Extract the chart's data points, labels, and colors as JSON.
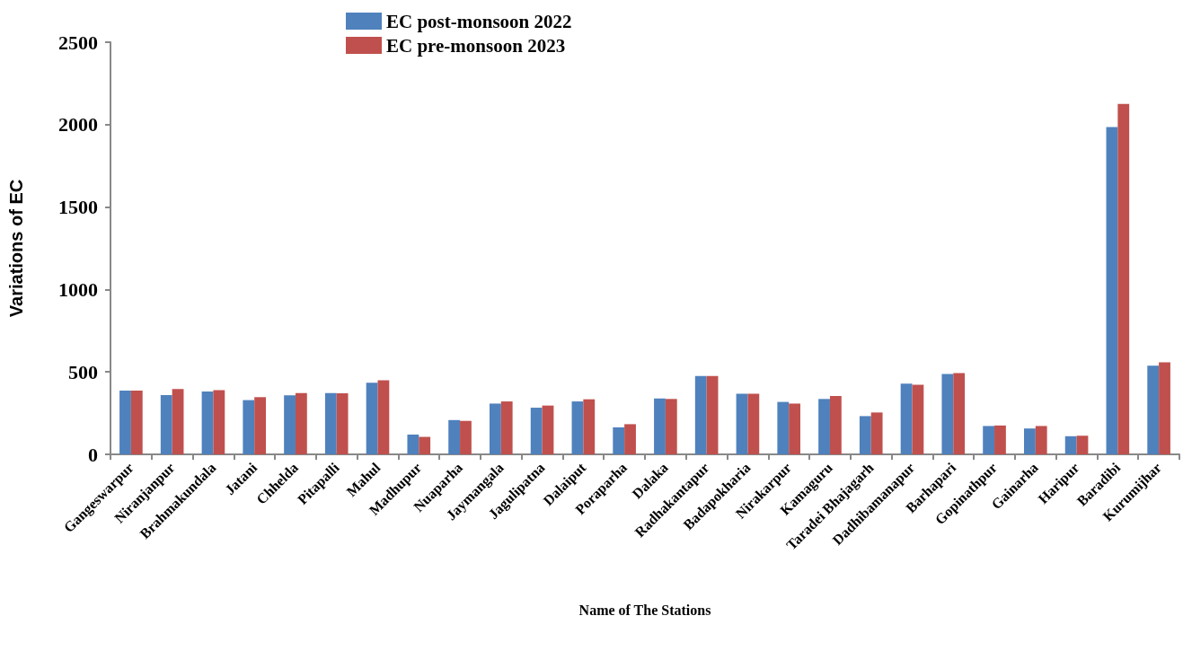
{
  "chart_data": {
    "type": "bar",
    "xlabel": "Name of The Stations",
    "ylabel": "Variations of EC",
    "categories": [
      "Gangeswarpur",
      "Niranjanpur",
      "Brahmakundala",
      "Jatani",
      "Chhelda",
      "Pitapalli",
      "Mahul",
      "Madhupur",
      "Nuaparha",
      "Jaymangala",
      "Jagulipatna",
      "Dalaiput",
      "Poraparha",
      "Dalaka",
      "Radhakantapur",
      "Badapokharia",
      "Nirakarpur",
      "Kamaguru",
      "Taradei Bhajagarh",
      "Dadhibamanapur",
      "Barhapari",
      "Gopinathpur",
      "Gainarha",
      "Haripur",
      "Baradibi",
      "Kurumijhar"
    ],
    "series": [
      {
        "name": "EC post-monsoon 2022",
        "color": "#4f81bd",
        "values": [
          387,
          360,
          381,
          329,
          358,
          372,
          434,
          120,
          208,
          308,
          283,
          321,
          164,
          339,
          475,
          367,
          318,
          336,
          232,
          429,
          487,
          172,
          157,
          110,
          1985,
          538
        ]
      },
      {
        "name": "EC pre-monsoon 2023",
        "color": "#c0504d",
        "values": [
          387,
          396,
          389,
          347,
          372,
          370,
          449,
          106,
          203,
          321,
          296,
          334,
          183,
          336,
          475,
          367,
          308,
          354,
          254,
          422,
          493,
          175,
          172,
          113,
          2125,
          558
        ]
      }
    ],
    "ylim": [
      0,
      2500
    ],
    "yticks": [
      0,
      500,
      1000,
      1500,
      2000,
      2500
    ],
    "grid": false,
    "legend": "top"
  }
}
